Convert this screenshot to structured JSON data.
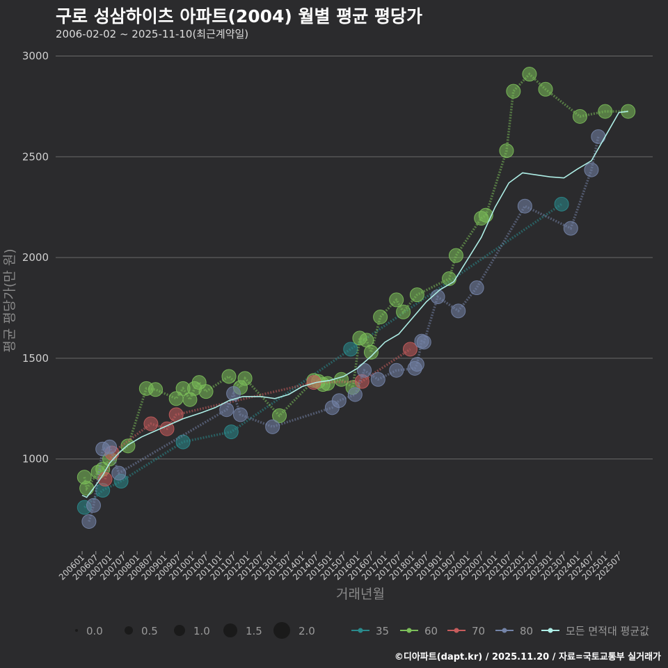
{
  "header": {
    "title": "구로 성삼하이츠 아파트(2004) 월별 평균 평당가",
    "subtitle": "2006-02-02 ~ 2025-11-10(최근계약일)"
  },
  "footer": {
    "credit": "©디아파트(dapt.kr) / 2025.11.20 / 자료=국토교통부 실거래가"
  },
  "chart_data": {
    "type": "scatter",
    "xlabel": "거래년월",
    "ylabel": "평균 평당가(만 원)",
    "ylim": [
      550,
      3050
    ],
    "yticks": [
      1000,
      1500,
      2000,
      2500,
      3000
    ],
    "xrange": [
      0,
      239
    ],
    "xticks": [
      {
        "label": "200601",
        "m": 0
      },
      {
        "label": "200607",
        "m": 6
      },
      {
        "label": "200701",
        "m": 12
      },
      {
        "label": "200707",
        "m": 18
      },
      {
        "label": "200801",
        "m": 24
      },
      {
        "label": "200807",
        "m": 30
      },
      {
        "label": "200901",
        "m": 36
      },
      {
        "label": "200907",
        "m": 42
      },
      {
        "label": "201001",
        "m": 48
      },
      {
        "label": "201007",
        "m": 54
      },
      {
        "label": "201101",
        "m": 60
      },
      {
        "label": "201107",
        "m": 66
      },
      {
        "label": "201201",
        "m": 72
      },
      {
        "label": "201207",
        "m": 78
      },
      {
        "label": "201301",
        "m": 84
      },
      {
        "label": "201307",
        "m": 90
      },
      {
        "label": "201401",
        "m": 96
      },
      {
        "label": "201407",
        "m": 102
      },
      {
        "label": "201501",
        "m": 108
      },
      {
        "label": "201507",
        "m": 114
      },
      {
        "label": "201601",
        "m": 120
      },
      {
        "label": "201607",
        "m": 126
      },
      {
        "label": "201701",
        "m": 132
      },
      {
        "label": "201707",
        "m": 138
      },
      {
        "label": "201801",
        "m": 144
      },
      {
        "label": "201807",
        "m": 150
      },
      {
        "label": "201901",
        "m": 156
      },
      {
        "label": "201907",
        "m": 162
      },
      {
        "label": "202001",
        "m": 168
      },
      {
        "label": "202007",
        "m": 174
      },
      {
        "label": "202101",
        "m": 180
      },
      {
        "label": "202107",
        "m": 186
      },
      {
        "label": "202201",
        "m": 192
      },
      {
        "label": "202207",
        "m": 198
      },
      {
        "label": "202301",
        "m": 204
      },
      {
        "label": "202307",
        "m": 210
      },
      {
        "label": "202401",
        "m": 216
      },
      {
        "label": "202407",
        "m": 222
      },
      {
        "label": "202501",
        "m": 228
      },
      {
        "label": "202507",
        "m": 234
      }
    ],
    "size_legend": [
      {
        "label": "0.0",
        "value": 0.0
      },
      {
        "label": "0.5",
        "value": 0.5
      },
      {
        "label": "1.0",
        "value": 1.0
      },
      {
        "label": "1.5",
        "value": 1.5
      },
      {
        "label": "2.0",
        "value": 2.0
      }
    ],
    "series": [
      {
        "name": "35",
        "color": "#2a8a8c",
        "points": [
          {
            "m": 1,
            "v": 760,
            "s": 1
          },
          {
            "m": 9,
            "v": 845,
            "s": 1
          },
          {
            "m": 17,
            "v": 890,
            "s": 1
          },
          {
            "m": 44,
            "v": 1085,
            "s": 1
          },
          {
            "m": 65,
            "v": 1135,
            "s": 1
          },
          {
            "m": 117,
            "v": 1545,
            "s": 1
          },
          {
            "m": 209,
            "v": 2265,
            "s": 1
          }
        ]
      },
      {
        "name": "60",
        "color": "#7cbf5a",
        "points": [
          {
            "m": 1,
            "v": 910,
            "s": 1
          },
          {
            "m": 2,
            "v": 855,
            "s": 1
          },
          {
            "m": 7,
            "v": 935,
            "s": 1
          },
          {
            "m": 9,
            "v": 950,
            "s": 1
          },
          {
            "m": 12,
            "v": 1000,
            "s": 1
          },
          {
            "m": 20,
            "v": 1065,
            "s": 1
          },
          {
            "m": 28,
            "v": 1350,
            "s": 1
          },
          {
            "m": 32,
            "v": 1345,
            "s": 1
          },
          {
            "m": 41,
            "v": 1300,
            "s": 1
          },
          {
            "m": 44,
            "v": 1350,
            "s": 1
          },
          {
            "m": 47,
            "v": 1295,
            "s": 1
          },
          {
            "m": 49,
            "v": 1350,
            "s": 1
          },
          {
            "m": 51,
            "v": 1380,
            "s": 1
          },
          {
            "m": 54,
            "v": 1335,
            "s": 1
          },
          {
            "m": 64,
            "v": 1410,
            "s": 1
          },
          {
            "m": 69,
            "v": 1355,
            "s": 1
          },
          {
            "m": 71,
            "v": 1400,
            "s": 1
          },
          {
            "m": 86,
            "v": 1215,
            "s": 1
          },
          {
            "m": 101,
            "v": 1390,
            "s": 1
          },
          {
            "m": 103,
            "v": 1385,
            "s": 1
          },
          {
            "m": 105,
            "v": 1370,
            "s": 1
          },
          {
            "m": 107,
            "v": 1375,
            "s": 1
          },
          {
            "m": 113,
            "v": 1395,
            "s": 1
          },
          {
            "m": 118,
            "v": 1355,
            "s": 1
          },
          {
            "m": 121,
            "v": 1600,
            "s": 1
          },
          {
            "m": 124,
            "v": 1590,
            "s": 1
          },
          {
            "m": 126,
            "v": 1530,
            "s": 1
          },
          {
            "m": 130,
            "v": 1705,
            "s": 1
          },
          {
            "m": 137,
            "v": 1790,
            "s": 1
          },
          {
            "m": 140,
            "v": 1730,
            "s": 1
          },
          {
            "m": 146,
            "v": 1815,
            "s": 1
          },
          {
            "m": 160,
            "v": 1895,
            "s": 1
          },
          {
            "m": 163,
            "v": 2010,
            "s": 1
          },
          {
            "m": 174,
            "v": 2195,
            "s": 1
          },
          {
            "m": 176,
            "v": 2210,
            "s": 1
          },
          {
            "m": 185,
            "v": 2530,
            "s": 1
          },
          {
            "m": 188,
            "v": 2825,
            "s": 1
          },
          {
            "m": 195,
            "v": 2910,
            "s": 1
          },
          {
            "m": 202,
            "v": 2835,
            "s": 1
          },
          {
            "m": 217,
            "v": 2700,
            "s": 1
          },
          {
            "m": 228,
            "v": 2725,
            "s": 1
          },
          {
            "m": 238,
            "v": 2725,
            "s": 1
          }
        ]
      },
      {
        "name": "70",
        "color": "#c75c5c",
        "points": [
          {
            "m": 10,
            "v": 900,
            "s": 1
          },
          {
            "m": 13,
            "v": 1030,
            "s": 1
          },
          {
            "m": 30,
            "v": 1175,
            "s": 1
          },
          {
            "m": 37,
            "v": 1150,
            "s": 1
          },
          {
            "m": 41,
            "v": 1220,
            "s": 1
          },
          {
            "m": 101,
            "v": 1380,
            "s": 1
          },
          {
            "m": 122,
            "v": 1385,
            "s": 1
          },
          {
            "m": 143,
            "v": 1545,
            "s": 1
          }
        ]
      },
      {
        "name": "80",
        "color": "#7484a8",
        "points": [
          {
            "m": 3,
            "v": 690,
            "s": 1
          },
          {
            "m": 5,
            "v": 770,
            "s": 1
          },
          {
            "m": 9,
            "v": 1050,
            "s": 1
          },
          {
            "m": 12,
            "v": 1060,
            "s": 1
          },
          {
            "m": 16,
            "v": 930,
            "s": 1
          },
          {
            "m": 63,
            "v": 1245,
            "s": 1
          },
          {
            "m": 66,
            "v": 1325,
            "s": 1
          },
          {
            "m": 69,
            "v": 1220,
            "s": 1
          },
          {
            "m": 83,
            "v": 1160,
            "s": 1
          },
          {
            "m": 109,
            "v": 1255,
            "s": 1
          },
          {
            "m": 112,
            "v": 1290,
            "s": 1
          },
          {
            "m": 119,
            "v": 1320,
            "s": 1
          },
          {
            "m": 123,
            "v": 1440,
            "s": 1
          },
          {
            "m": 129,
            "v": 1395,
            "s": 1
          },
          {
            "m": 137,
            "v": 1440,
            "s": 1
          },
          {
            "m": 145,
            "v": 1450,
            "s": 1
          },
          {
            "m": 146,
            "v": 1470,
            "s": 1
          },
          {
            "m": 148,
            "v": 1585,
            "s": 1
          },
          {
            "m": 149,
            "v": 1580,
            "s": 1
          },
          {
            "m": 155,
            "v": 1805,
            "s": 1
          },
          {
            "m": 164,
            "v": 1735,
            "s": 1
          },
          {
            "m": 172,
            "v": 1850,
            "s": 1
          },
          {
            "m": 193,
            "v": 2255,
            "s": 1
          },
          {
            "m": 213,
            "v": 2145,
            "s": 1
          },
          {
            "m": 222,
            "v": 2435,
            "s": 1
          },
          {
            "m": 225,
            "v": 2600,
            "s": 1
          }
        ]
      },
      {
        "name": "모든 면적대 평균값",
        "color": "#aeeee6",
        "type": "line",
        "points": [
          {
            "m": 0,
            "v": 820
          },
          {
            "m": 2,
            "v": 810
          },
          {
            "m": 4,
            "v": 840
          },
          {
            "m": 6,
            "v": 870
          },
          {
            "m": 9,
            "v": 920
          },
          {
            "m": 12,
            "v": 980
          },
          {
            "m": 16,
            "v": 1030
          },
          {
            "m": 20,
            "v": 1070
          },
          {
            "m": 26,
            "v": 1110
          },
          {
            "m": 32,
            "v": 1140
          },
          {
            "m": 38,
            "v": 1170
          },
          {
            "m": 44,
            "v": 1200
          },
          {
            "m": 52,
            "v": 1230
          },
          {
            "m": 58,
            "v": 1255
          },
          {
            "m": 64,
            "v": 1290
          },
          {
            "m": 70,
            "v": 1310
          },
          {
            "m": 78,
            "v": 1310
          },
          {
            "m": 84,
            "v": 1300
          },
          {
            "m": 90,
            "v": 1320
          },
          {
            "m": 96,
            "v": 1360
          },
          {
            "m": 102,
            "v": 1380
          },
          {
            "m": 108,
            "v": 1390
          },
          {
            "m": 114,
            "v": 1410
          },
          {
            "m": 120,
            "v": 1450
          },
          {
            "m": 126,
            "v": 1510
          },
          {
            "m": 132,
            "v": 1580
          },
          {
            "m": 138,
            "v": 1620
          },
          {
            "m": 144,
            "v": 1700
          },
          {
            "m": 150,
            "v": 1780
          },
          {
            "m": 156,
            "v": 1840
          },
          {
            "m": 162,
            "v": 1880
          },
          {
            "m": 168,
            "v": 1990
          },
          {
            "m": 174,
            "v": 2100
          },
          {
            "m": 180,
            "v": 2250
          },
          {
            "m": 186,
            "v": 2370
          },
          {
            "m": 192,
            "v": 2420
          },
          {
            "m": 198,
            "v": 2410
          },
          {
            "m": 204,
            "v": 2400
          },
          {
            "m": 210,
            "v": 2395
          },
          {
            "m": 216,
            "v": 2440
          },
          {
            "m": 222,
            "v": 2480
          },
          {
            "m": 228,
            "v": 2600
          },
          {
            "m": 234,
            "v": 2720
          },
          {
            "m": 238,
            "v": 2725
          }
        ]
      }
    ]
  }
}
